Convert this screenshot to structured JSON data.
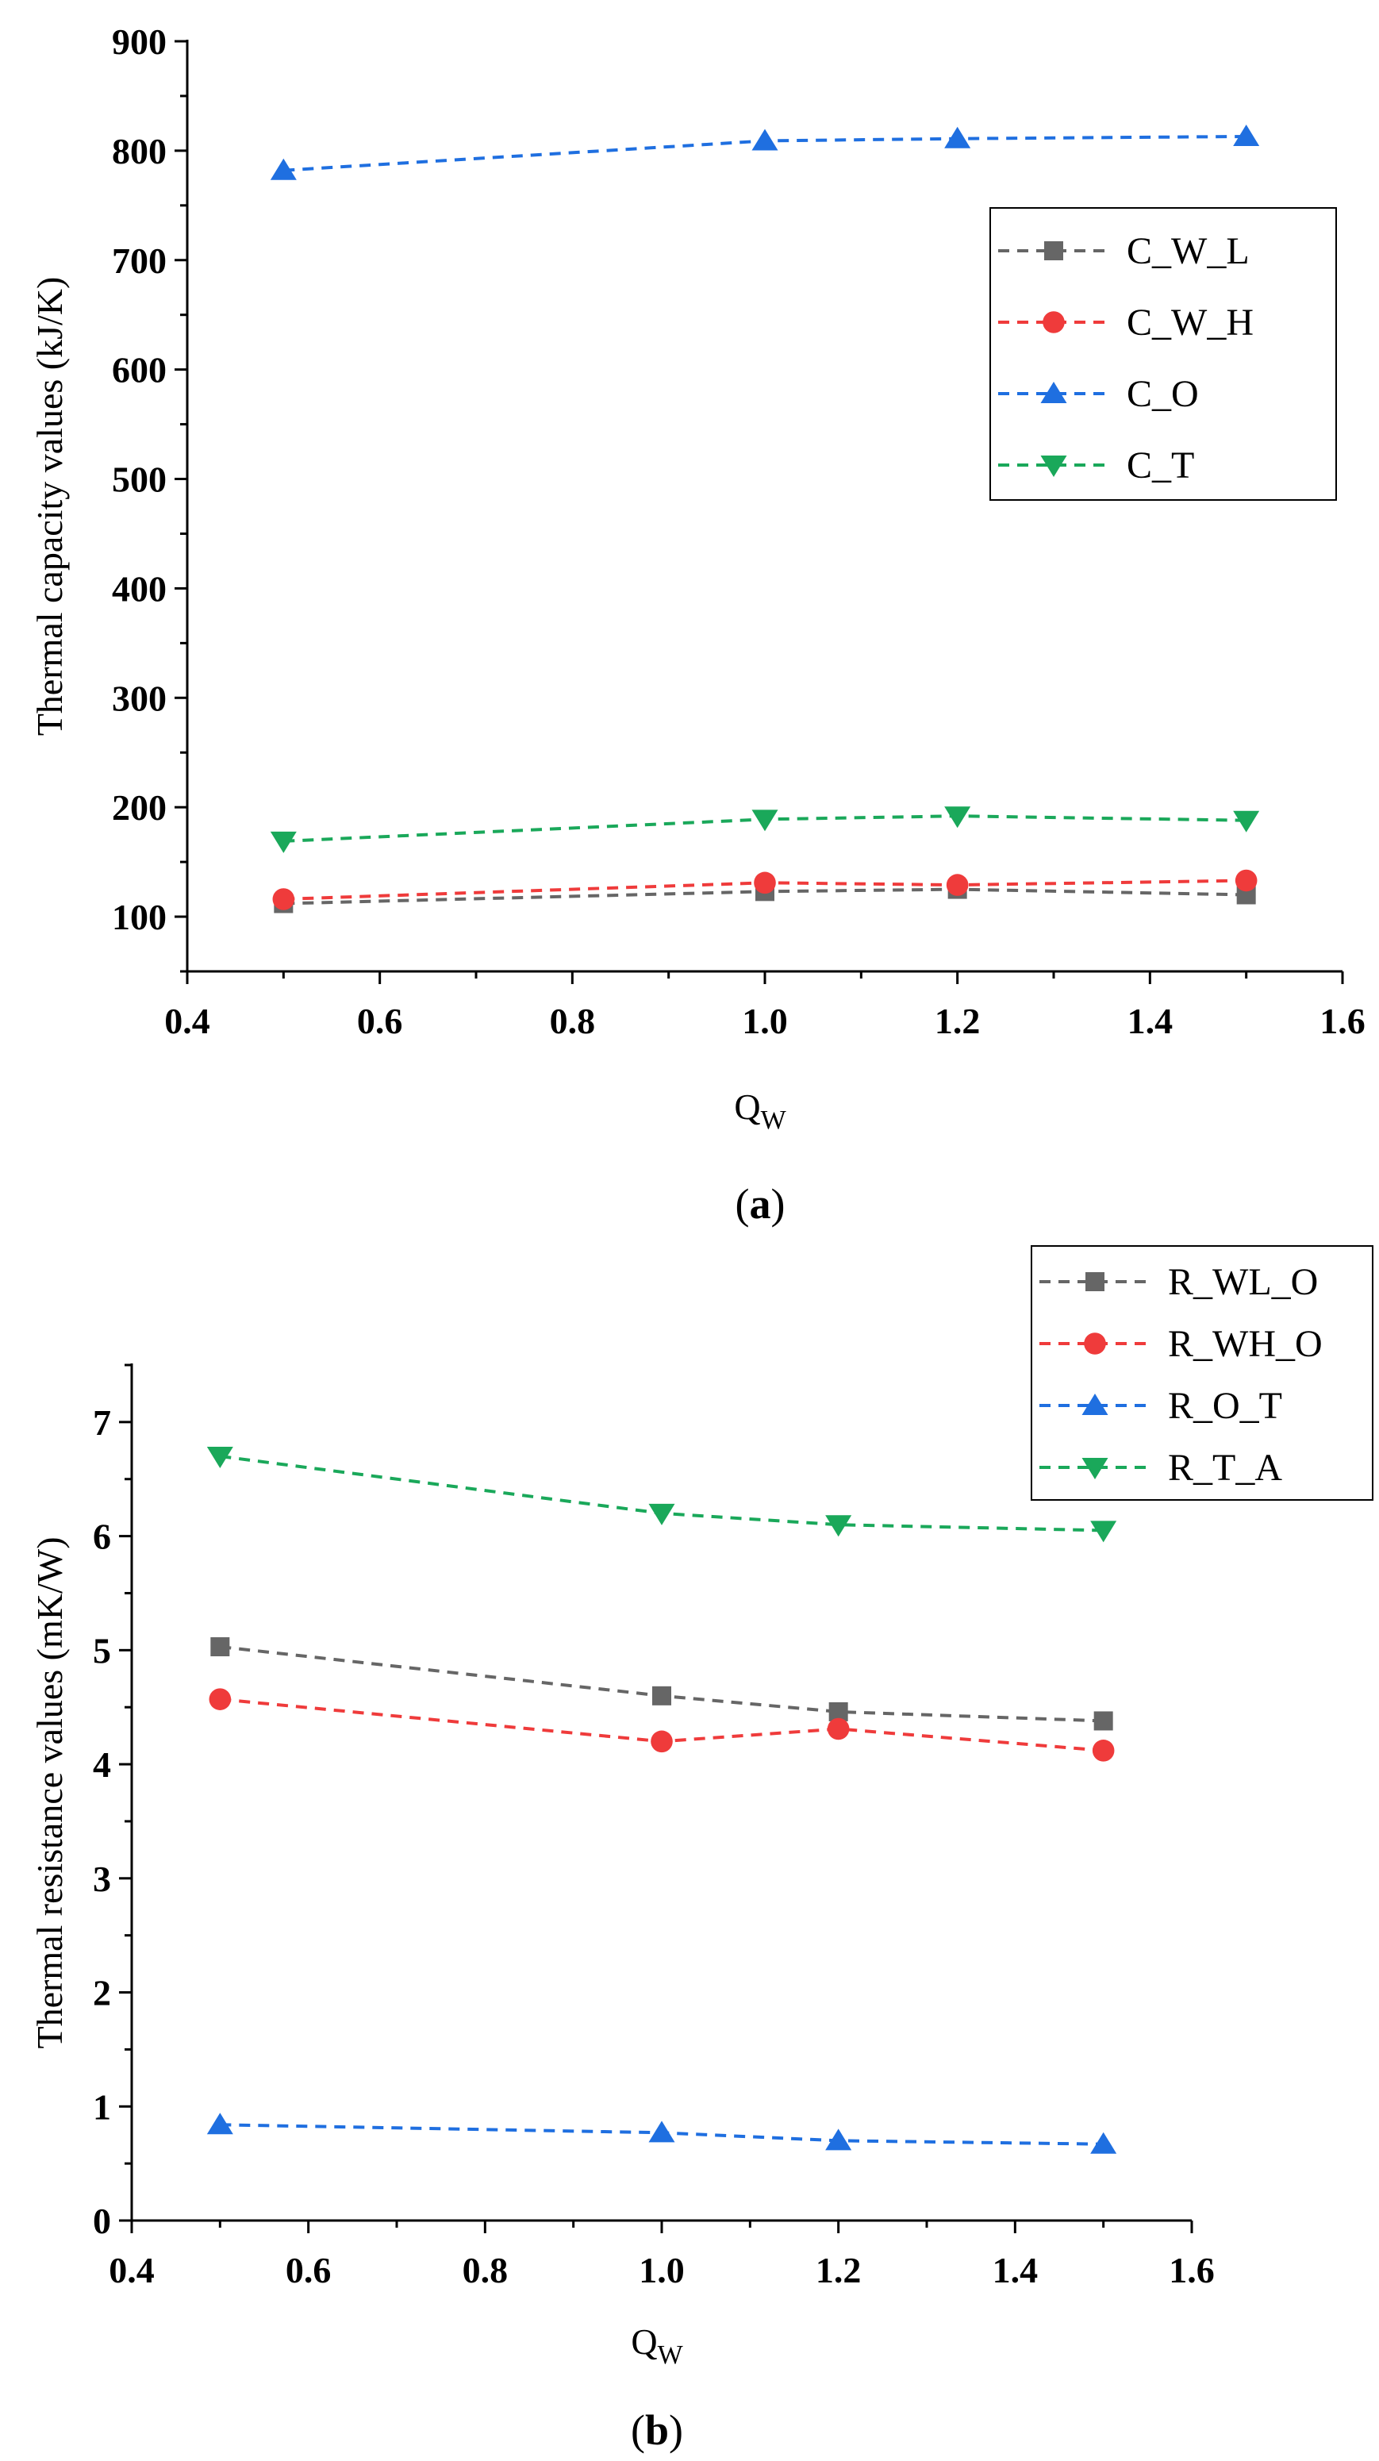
{
  "chart_data": [
    {
      "type": "line",
      "caption_letter": "a",
      "x": [
        0.5,
        1.0,
        1.2,
        1.5
      ],
      "xlim": [
        0.4,
        1.6
      ],
      "xticks": [
        "0.4",
        "0.6",
        "0.8",
        "1.0",
        "1.2",
        "1.4",
        "1.6"
      ],
      "ylim": [
        50,
        900
      ],
      "yticks": [
        "100",
        "200",
        "300",
        "400",
        "500",
        "600",
        "700",
        "800",
        "900"
      ],
      "xlabel": "Q",
      "xlabel_sub": "W",
      "ylabel": "Thermal capacity values (kJ/K)",
      "legend_position": "right",
      "series": [
        {
          "name": "C_W_L",
          "color": "#666666",
          "marker": "square",
          "values": [
            112,
            123,
            125,
            120
          ]
        },
        {
          "name": "C_W_H",
          "color": "#ef3b3b",
          "marker": "circle",
          "values": [
            116,
            131,
            129,
            133
          ]
        },
        {
          "name": "C_O",
          "color": "#1f6fe0",
          "marker": "triangle-up",
          "values": [
            782,
            809,
            811,
            813
          ]
        },
        {
          "name": "C_T",
          "color": "#1aa85a",
          "marker": "triangle-down",
          "values": [
            169,
            189,
            192,
            188
          ]
        }
      ]
    },
    {
      "type": "line",
      "caption_letter": "b",
      "x": [
        0.5,
        1.0,
        1.2,
        1.5
      ],
      "xlim": [
        0.4,
        1.6
      ],
      "xticks": [
        "0.4",
        "0.6",
        "0.8",
        "1.0",
        "1.2",
        "1.4",
        "1.6"
      ],
      "ylim": [
        0,
        7.5
      ],
      "yticks": [
        "0",
        "1",
        "2",
        "3",
        "4",
        "5",
        "6",
        "7"
      ],
      "xlabel": "Q",
      "xlabel_sub": "W",
      "ylabel": "Thermal resistance values (mK/W)",
      "legend_position": "top-right",
      "series": [
        {
          "name": "R_WL_O",
          "color": "#666666",
          "marker": "square",
          "values": [
            5.03,
            4.6,
            4.46,
            4.38
          ]
        },
        {
          "name": "R_WH_O",
          "color": "#ef3b3b",
          "marker": "circle",
          "values": [
            4.57,
            4.2,
            4.31,
            4.12
          ]
        },
        {
          "name": "R_O_T",
          "color": "#1f6fe0",
          "marker": "triangle-up",
          "values": [
            0.84,
            0.77,
            0.7,
            0.67
          ]
        },
        {
          "name": "R_T_A",
          "color": "#1aa85a",
          "marker": "triangle-down",
          "values": [
            6.7,
            6.2,
            6.1,
            6.05
          ]
        }
      ]
    }
  ]
}
